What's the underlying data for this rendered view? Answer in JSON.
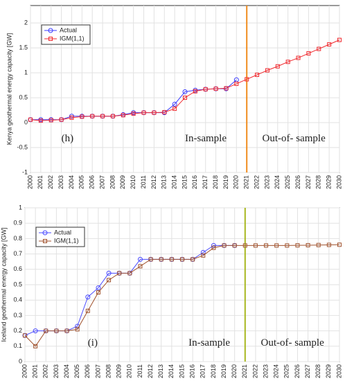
{
  "chart_data": [
    {
      "type": "line",
      "ylabel": "Kenya geothermal energy capacity [GW]",
      "categories": [
        "2000",
        "2001",
        "2002",
        "2003",
        "2004",
        "2005",
        "2006",
        "2007",
        "2008",
        "2009",
        "2010",
        "2011",
        "2012",
        "2013",
        "2014",
        "2015",
        "2016",
        "2017",
        "2018",
        "2019",
        "2020",
        "2021",
        "2022",
        "2023",
        "2024",
        "2025",
        "2026",
        "2027",
        "2028",
        "2029",
        "2030"
      ],
      "series": [
        {
          "name": "Actual",
          "color": "#3b3bff",
          "marker": "circle",
          "values": [
            0.06,
            0.06,
            0.06,
            0.06,
            0.13,
            0.13,
            0.13,
            0.13,
            0.13,
            0.16,
            0.2,
            0.2,
            0.2,
            0.2,
            0.37,
            0.62,
            0.65,
            0.67,
            0.68,
            0.68,
            0.86,
            null,
            null,
            null,
            null,
            null,
            null,
            null,
            null,
            null,
            null
          ]
        },
        {
          "name": "IGM(1,1)",
          "color": "#f0282d",
          "marker": "square",
          "values": [
            0.06,
            0.04,
            0.05,
            0.06,
            0.1,
            0.12,
            0.13,
            0.13,
            0.13,
            0.15,
            0.18,
            0.2,
            0.2,
            0.21,
            0.28,
            0.5,
            0.63,
            0.67,
            0.68,
            0.69,
            0.78,
            0.87,
            0.96,
            1.05,
            1.13,
            1.22,
            1.3,
            1.39,
            1.48,
            1.57,
            1.66
          ]
        }
      ],
      "ylim": [
        -1,
        2.35
      ],
      "yticks": [
        -1,
        -0.5,
        0,
        0.5,
        1,
        1.5,
        2
      ],
      "grid": true,
      "legend": "upper-left",
      "divider": {
        "x": "2021",
        "color": "#f08c1e"
      },
      "annotations": [
        "(h)",
        "In-sample",
        "Out-of- sample"
      ]
    },
    {
      "type": "line",
      "ylabel": "Iceland geothermal energy capacity [GW]",
      "categories": [
        "2000",
        "2001",
        "2002",
        "2003",
        "2004",
        "2005",
        "2006",
        "2007",
        "2008",
        "2009",
        "2010",
        "2011",
        "2012",
        "2013",
        "2014",
        "2015",
        "2016",
        "2017",
        "2018",
        "2019",
        "2020",
        "2021",
        "2022",
        "2023",
        "2024",
        "2025",
        "2026",
        "2027",
        "2028",
        "2029",
        "2030"
      ],
      "series": [
        {
          "name": "Actual",
          "color": "#4a4aff",
          "marker": "circle",
          "values": [
            0.17,
            0.2,
            0.2,
            0.2,
            0.2,
            0.23,
            0.42,
            0.48,
            0.575,
            0.575,
            0.575,
            0.665,
            0.665,
            0.665,
            0.665,
            0.665,
            0.665,
            0.71,
            0.755,
            0.755,
            0.755,
            null,
            null,
            null,
            null,
            null,
            null,
            null,
            null,
            null,
            null
          ]
        },
        {
          "name": "IGM(1,1)",
          "color": "#a0522d",
          "marker": "square",
          "values": [
            0.17,
            0.1,
            0.2,
            0.2,
            0.2,
            0.21,
            0.33,
            0.45,
            0.53,
            0.575,
            0.575,
            0.62,
            0.665,
            0.665,
            0.665,
            0.665,
            0.665,
            0.69,
            0.74,
            0.755,
            0.755,
            0.755,
            0.755,
            0.755,
            0.755,
            0.755,
            0.756,
            0.757,
            0.758,
            0.759,
            0.76
          ]
        }
      ],
      "ylim": [
        0,
        1
      ],
      "yticks": [
        0,
        0.1,
        0.2,
        0.3,
        0.4,
        0.5,
        0.6,
        0.7,
        0.8,
        0.9,
        1
      ],
      "grid": true,
      "legend": "upper-left",
      "divider": {
        "x": "2021",
        "color": "#a8b820"
      },
      "annotations": [
        "(i)",
        "In-sample",
        "Out-of- sample"
      ]
    }
  ]
}
